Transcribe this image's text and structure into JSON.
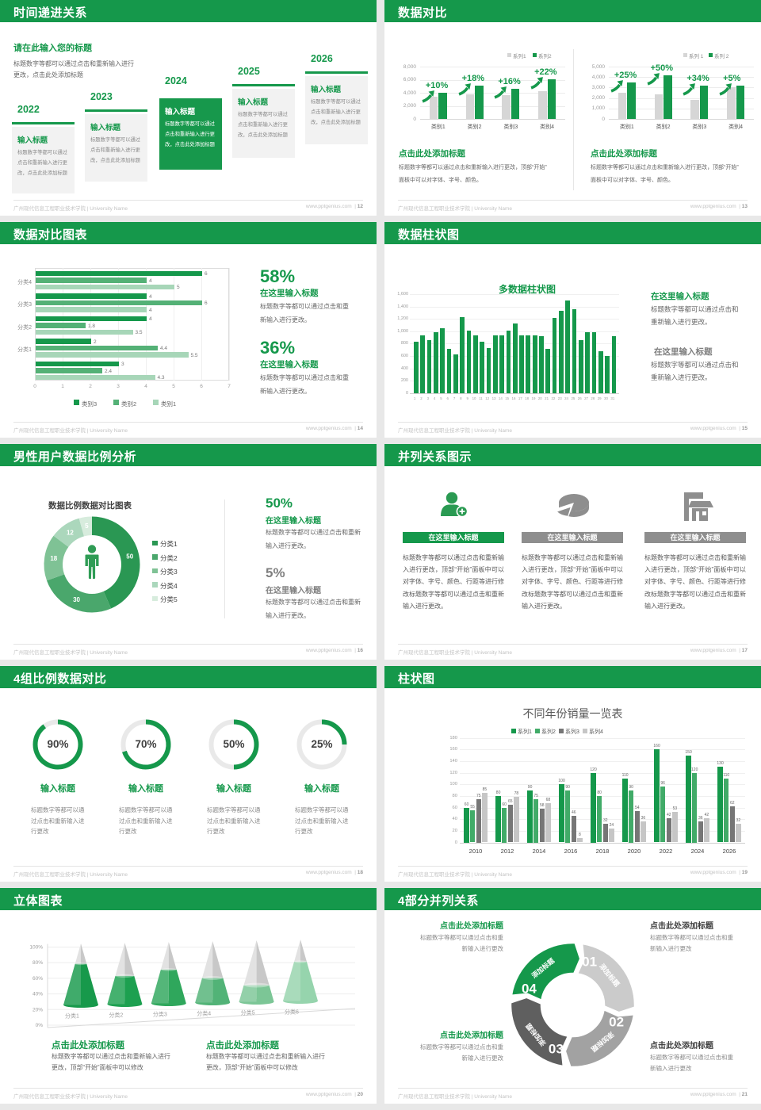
{
  "page": {
    "background": "#e8e8e8",
    "slide_background": "#ffffff"
  },
  "colors": {
    "green": "#15984b",
    "green_mid": "#4cae71",
    "green_light": "#a4d5b6",
    "grey_bar": "#d6d6d6",
    "grey_dark": "#595959",
    "grey_mid": "#9e9e9e",
    "grey_light": "#c9c9c9"
  },
  "footer": {
    "left": "广州现代信息工程职业技术学院 | University Name",
    "site": "www.pptgenius.com"
  },
  "slides": {
    "s1": {
      "header": "时间递进关系",
      "page_no": "12",
      "intro_title": "请在此输入您的标题",
      "intro_body": "标题数字等都可以通过点击和重新输入进行更改，点击此处添加标题",
      "card_title": "输入标题",
      "card_body": "标题数字等都可以通过点击和重新输入进行更改，点击此处添加标题",
      "years": [
        "2022",
        "2023",
        "2024",
        "2025",
        "2026"
      ]
    },
    "s2": {
      "header": "数据对比",
      "page_no": "13",
      "caption_title": "点击此处添加标题",
      "caption_body": "标题数字等都可以通过点击和重新输入进行更改，顶部“开始”面板中可以对字体、字号、颜色。"
    },
    "s3": {
      "header": "数据对比图表",
      "page_no": "14",
      "stats": [
        {
          "pct": "58%",
          "title": "在这里输入标题",
          "body": "标题数字等都可以通过点击和重新输入进行更改。"
        },
        {
          "pct": "36%",
          "title": "在这里输入标题",
          "body": "标题数字等都可以通过点击和重新输入进行更改。"
        }
      ]
    },
    "s4": {
      "header": "数据柱状图",
      "page_no": "15",
      "chart_title": "多数据柱状图",
      "blocks": [
        {
          "title": "在这里输入标题",
          "body": "标题数字等都可以通过点击和重新输入进行更改。"
        },
        {
          "title": "在这里输入标题",
          "body": "标题数字等都可以通过点击和重新输入进行更改。"
        }
      ]
    },
    "s5": {
      "header": "男性用户数据比例分析",
      "page_no": "16",
      "chart_title": "数据比例数据对比图表",
      "stats": [
        {
          "pct": "50%",
          "title": "在这里输入标题",
          "body": "标题数字等都可以通过点击和重新输入进行更改。"
        },
        {
          "pct": "5%",
          "title": "在这里输入标题",
          "body": "标题数字等都可以通过点击和重新输入进行更改。"
        }
      ]
    },
    "s6": {
      "header": "并列关系图示",
      "page_no": "17",
      "item_title": "在这里输入标题",
      "item_body": "标题数字等都可以通过点击和重新输入进行更改，顶部“开始”面板中可以对字体、字号、颜色、行距等进行修改标题数字等都可以通过点击和重新输入进行更改。"
    },
    "s7": {
      "header": "4组比例数据对比",
      "page_no": "18",
      "item_title": "输入标题",
      "item_body": "标题数字等都可以通过点击和重新输入进行更改"
    },
    "s8": {
      "header": "柱状图",
      "page_no": "19",
      "chart_title": "不同年份销量一览表"
    },
    "s9": {
      "header": "立体图表",
      "page_no": "20",
      "captions": [
        {
          "title": "点击此处添加标题",
          "body": "标题数字等都可以通过点击和重新输入进行更改，顶部“开始”面板中可以修改"
        },
        {
          "title": "点击此处添加标题",
          "body": "标题数字等都可以通过点击和重新输入进行更改，顶部“开始”面板中可以修改"
        }
      ]
    },
    "s10": {
      "header": "4部分并列关系",
      "page_no": "21",
      "blocks": [
        {
          "title": "点击此处添加标题",
          "body": "标题数字等都可以通过点击和重新输入进行更改",
          "green": true
        },
        {
          "title": "点击此处添加标题",
          "body": "标题数字等都可以通过点击和重新输入进行更改",
          "green": false
        },
        {
          "title": "点击此处添加标题",
          "body": "标题数字等都可以通过点击和重新输入进行更改",
          "green": true
        },
        {
          "title": "点击此处添加标题",
          "body": "标题数字等都可以通过点击和重新输入进行更改",
          "green": false
        }
      ]
    }
  },
  "chart_data": [
    {
      "id": "compare-left",
      "type": "bar",
      "slide": "s2",
      "title": "点击此处添加标题",
      "categories": [
        "类别1",
        "类别2",
        "类别3",
        "类别4"
      ],
      "series": [
        {
          "name": "系列1",
          "values": [
            3400,
            3750,
            3650,
            4250
          ]
        },
        {
          "name": "系列2",
          "values": [
            4000,
            5150,
            4650,
            6050
          ]
        }
      ],
      "growth_labels": [
        "+10%",
        "+18%",
        "+16%",
        "+22%"
      ],
      "ylim": [
        0,
        8000
      ],
      "ytick_step": 2000,
      "yticks": [
        "0",
        "2,000",
        "4,000",
        "6,000",
        "8,000"
      ],
      "legend_position": "top-right",
      "grid": true
    },
    {
      "id": "compare-right",
      "type": "bar",
      "slide": "s2",
      "title": "点击此处添加标题",
      "categories": [
        "类别1",
        "类别2",
        "类别3",
        "类别4"
      ],
      "series": [
        {
          "name": "系列 1",
          "values": [
            2500,
            2350,
            1800,
            3000
          ]
        },
        {
          "name": "系列 2",
          "values": [
            3500,
            4150,
            3200,
            3200
          ]
        }
      ],
      "growth_labels": [
        "+25%",
        "+50%",
        "+34%",
        "+5%"
      ],
      "ylim": [
        0,
        5000
      ],
      "ytick_step": 1000,
      "yticks": [
        "0",
        "1,000",
        "2,000",
        "3,000",
        "4,000",
        "5,000"
      ],
      "legend_position": "top-right",
      "grid": true
    },
    {
      "id": "category-hbar",
      "type": "bar-horizontal",
      "slide": "s3",
      "categories": [
        "分类4",
        "分类3",
        "分类2",
        "分类1",
        ""
      ],
      "series": [
        {
          "name": "类别3",
          "values": [
            6,
            4,
            4,
            2,
            3
          ]
        },
        {
          "name": "类别2",
          "values": [
            4,
            6,
            1.8,
            4.4,
            2.4
          ]
        },
        {
          "name": "类别1",
          "values": [
            5,
            4,
            3.5,
            5.5,
            4.3
          ]
        }
      ],
      "xlim": [
        0,
        7
      ],
      "xticks": [
        "0",
        "1",
        "2",
        "3",
        "4",
        "5",
        "6",
        "7"
      ],
      "legend_position": "bottom",
      "grid": true,
      "data_labels": true
    },
    {
      "id": "daily-bars",
      "type": "bar",
      "slide": "s4",
      "title": "多数据柱状图",
      "categories": [
        "1",
        "2",
        "3",
        "4",
        "5",
        "6",
        "7",
        "8",
        "9",
        "10",
        "11",
        "12",
        "13",
        "14",
        "15",
        "16",
        "17",
        "18",
        "19",
        "20",
        "21",
        "22",
        "23",
        "24",
        "25",
        "26",
        "27",
        "28",
        "29",
        "30",
        "31"
      ],
      "values": [
        830,
        930,
        850,
        990,
        1050,
        720,
        620,
        1230,
        1010,
        930,
        830,
        730,
        930,
        930,
        1010,
        1130,
        930,
        930,
        930,
        920,
        720,
        1220,
        1330,
        1500,
        1350,
        850,
        990,
        990,
        680,
        600,
        920
      ],
      "ylim": [
        0,
        1600
      ],
      "ytick_step": 200,
      "yticks": [
        "0",
        "200",
        "400",
        "600",
        "800",
        "1,000",
        "1,200",
        "1,400",
        "1,600"
      ],
      "grid": true
    },
    {
      "id": "male-ratio-donut",
      "type": "pie",
      "slide": "s5",
      "title": "数据比例数据对比图表",
      "labels": [
        "分类1",
        "分类2",
        "分类3",
        "分类4",
        "分类5"
      ],
      "values": [
        50,
        30,
        18,
        12,
        5
      ],
      "colors": [
        "#2a9753",
        "#4aa76c",
        "#7fc295",
        "#abd7bc",
        "#d7ecdd"
      ],
      "legend_position": "right",
      "center_icon": "male-person-icon"
    },
    {
      "id": "progress-rings",
      "type": "donut-progress",
      "slide": "s7",
      "values": [
        90,
        70,
        50,
        25
      ],
      "labels": [
        "90%",
        "70%",
        "50%",
        "25%"
      ]
    },
    {
      "id": "yearly-sales",
      "type": "bar",
      "slide": "s8",
      "title": "不同年份销量一览表",
      "categories": [
        "2010",
        "2012",
        "2014",
        "2016",
        "2018",
        "2020",
        "2022",
        "2024",
        "2026"
      ],
      "series": [
        {
          "name": "系列1",
          "values": [
            60,
            80,
            90,
            100,
            120,
            110,
            160,
            150,
            130
          ]
        },
        {
          "name": "系列2",
          "values": [
            55,
            60,
            75,
            90,
            80,
            90,
            96,
            120,
            110
          ]
        },
        {
          "name": "系列3",
          "values": [
            75,
            65,
            58,
            46,
            32,
            54,
            42,
            36,
            62
          ]
        },
        {
          "name": "系列4",
          "values": [
            85,
            78,
            68,
            8,
            24,
            36,
            53,
            42,
            32
          ]
        }
      ],
      "ylim": [
        0,
        180
      ],
      "ytick_step": 20,
      "yticks": [
        "0",
        "20",
        "40",
        "60",
        "80",
        "100",
        "120",
        "140",
        "160",
        "180"
      ],
      "legend_position": "top",
      "grid": true,
      "data_labels": true
    },
    {
      "id": "cone-chart",
      "type": "bar",
      "subtype": "3d-cone",
      "slide": "s9",
      "categories": [
        "分类1",
        "分类2",
        "分类3",
        "分类4",
        "分类5",
        "分类6"
      ],
      "values": [
        67,
        46,
        55,
        40,
        27,
        64
      ],
      "unit": "%",
      "ylim": [
        0,
        100
      ],
      "ytick_step": 20,
      "yticks": [
        "0%",
        "20%",
        "40%",
        "60%",
        "80%",
        "100%"
      ],
      "cone_colors": [
        "#17994b",
        "#1da050",
        "#2fa75c",
        "#52b377",
        "#7cc696",
        "#96d4ad"
      ]
    },
    {
      "id": "cycle-4part",
      "type": "cycle",
      "slide": "s10",
      "segments": [
        {
          "num": "01",
          "label": "添加标题",
          "color": "#cbcbcb"
        },
        {
          "num": "02",
          "label": "添加标题",
          "color": "#a2a2a2"
        },
        {
          "num": "03",
          "label": "添加标题",
          "color": "#5f5f5f"
        },
        {
          "num": "04",
          "label": "添加标题",
          "color": "#15984b"
        }
      ]
    }
  ]
}
